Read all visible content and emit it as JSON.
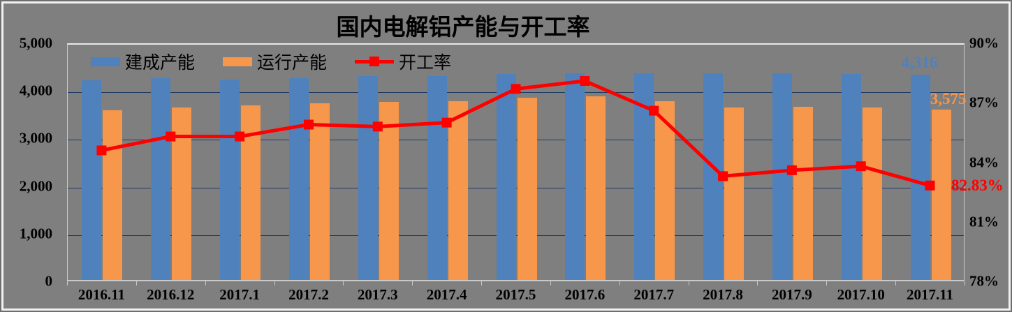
{
  "window": {
    "background_color": "#7f7f7f",
    "frame_border_light": "#f2f2f2",
    "frame_border_dark": "#6e6e6e"
  },
  "chart_data": {
    "type": "bar",
    "title": "国内电解铝产能与开工率",
    "categories": [
      "2016.11",
      "2016.12",
      "2017.1",
      "2017.2",
      "2017.3",
      "2017.4",
      "2017.5",
      "2017.6",
      "2017.7",
      "2017.8",
      "2017.9",
      "2017.10",
      "2017.11"
    ],
    "series": [
      {
        "name": "建成产能",
        "type": "bar",
        "axis": "left",
        "color": "#4F81BD",
        "values": [
          4200,
          4235,
          4205,
          4245,
          4275,
          4275,
          4325,
          4340,
          4335,
          4335,
          4340,
          4320,
          4316
        ],
        "last_point_label": "4,316"
      },
      {
        "name": "运行产能",
        "type": "bar",
        "axis": "left",
        "color": "#F6974B",
        "values": [
          3560,
          3625,
          3660,
          3715,
          3745,
          3750,
          3820,
          3850,
          3750,
          3615,
          3635,
          3625,
          3575
        ],
        "last_point_label": "3,575"
      },
      {
        "name": "开工率",
        "type": "line",
        "axis": "right",
        "color": "#FF0000",
        "marker": "square",
        "values": [
          84.6,
          85.3,
          85.3,
          85.9,
          85.8,
          86.0,
          87.7,
          88.1,
          86.6,
          83.3,
          83.6,
          83.8,
          82.83
        ],
        "last_point_label": "82.83%"
      }
    ],
    "left_axis": {
      "min": 0,
      "max": 5000,
      "tick_step": 1000,
      "tick_labels": [
        "0",
        "1,000",
        "2,000",
        "3,000",
        "4,000",
        "5,000"
      ]
    },
    "right_axis": {
      "min": 78,
      "max": 90,
      "tick_step": 3,
      "tick_labels": [
        "78%",
        "81%",
        "84%",
        "87%",
        "90%"
      ]
    },
    "grid": "horizontal-only",
    "gridline_color": "#1f3b63",
    "legend_position": "top-inside"
  }
}
